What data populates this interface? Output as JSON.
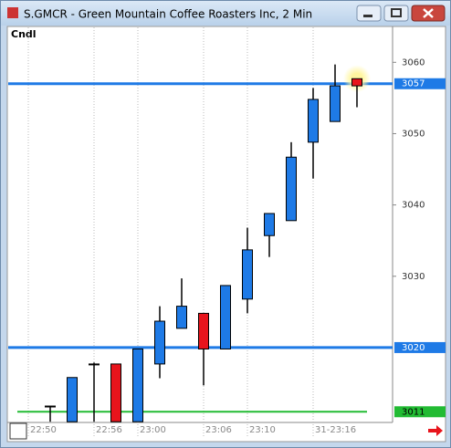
{
  "window": {
    "title": "S.GMCR - Green Mountain Coffee Roasters Inc, 2 Min"
  },
  "chart_data": {
    "type": "candlestick",
    "label": "Cndl",
    "categories": [
      "22:50",
      null,
      null,
      "22:56",
      null,
      "23:00",
      null,
      null,
      "23:06",
      null,
      "23:10",
      null,
      null,
      "31-23:16",
      null
    ],
    "open": [
      3011.8,
      3009.6,
      3017.7,
      3017.7,
      3009.6,
      3017.7,
      3022.7,
      3024.8,
      3019.8,
      3026.8,
      3035.7,
      3037.8,
      3048.8,
      3051.7,
      3057.7
    ],
    "high": [
      3011.8,
      3015.8,
      3017.9,
      3017.7,
      3019.8,
      3025.8,
      3029.7,
      3024.8,
      3028.7,
      3036.8,
      3038.8,
      3048.8,
      3056.4,
      3059.7,
      3057.7
    ],
    "low": [
      3009.6,
      3009.6,
      3009.6,
      3009.6,
      3009.6,
      3015.7,
      3022.7,
      3014.7,
      3019.8,
      3024.8,
      3032.7,
      3037.8,
      3043.7,
      3051.7,
      3053.7
    ],
    "close": [
      3011.8,
      3015.8,
      3017.7,
      3009.6,
      3019.8,
      3023.7,
      3025.8,
      3019.8,
      3028.7,
      3033.7,
      3038.8,
      3046.7,
      3054.8,
      3056.7,
      3056.7
    ],
    "up_color": "#1e7ae6",
    "down_color": "#e8141c",
    "levels": [
      {
        "value": 3057,
        "color": "#1e7ae6"
      },
      {
        "value": 3020,
        "color": "#1e7ae6"
      },
      {
        "value": 3011,
        "color": "#22bb33"
      }
    ],
    "ylim": [
      3009.5,
      3064.9
    ],
    "yticks": [
      3030,
      3040,
      3050,
      3060
    ],
    "grid": true
  }
}
